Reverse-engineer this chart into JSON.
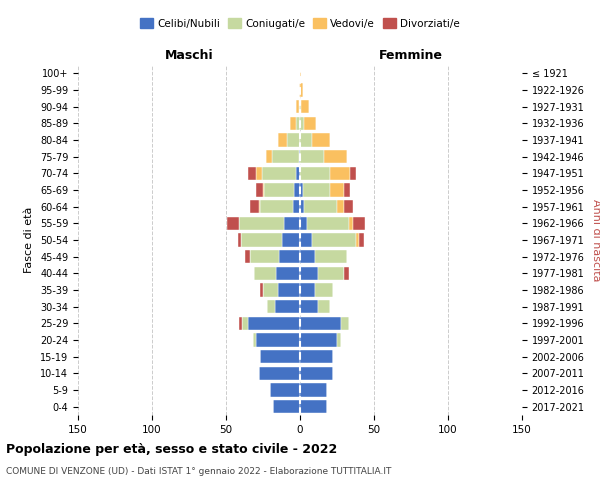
{
  "age_groups": [
    "100+",
    "95-99",
    "90-94",
    "85-89",
    "80-84",
    "75-79",
    "70-74",
    "65-69",
    "60-64",
    "55-59",
    "50-54",
    "45-49",
    "40-44",
    "35-39",
    "30-34",
    "25-29",
    "20-24",
    "15-19",
    "10-14",
    "5-9",
    "0-4"
  ],
  "birth_years": [
    "≤ 1921",
    "1922-1926",
    "1927-1931",
    "1932-1936",
    "1937-1941",
    "1942-1946",
    "1947-1951",
    "1952-1956",
    "1957-1961",
    "1962-1966",
    "1967-1971",
    "1972-1976",
    "1977-1981",
    "1982-1986",
    "1987-1991",
    "1992-1996",
    "1997-2001",
    "2002-2006",
    "2007-2011",
    "2012-2016",
    "2017-2021"
  ],
  "males": {
    "celibi": [
      0,
      0,
      0,
      0,
      0,
      1,
      3,
      4,
      5,
      11,
      12,
      14,
      16,
      15,
      17,
      35,
      30,
      27,
      28,
      20,
      18
    ],
    "coniugati": [
      0,
      0,
      1,
      3,
      9,
      18,
      23,
      20,
      22,
      30,
      28,
      20,
      15,
      10,
      5,
      4,
      2,
      0,
      0,
      0,
      0
    ],
    "vedovi": [
      0,
      1,
      2,
      4,
      6,
      4,
      4,
      1,
      1,
      0,
      0,
      0,
      0,
      0,
      0,
      0,
      0,
      0,
      0,
      0,
      0
    ],
    "divorziati": [
      0,
      0,
      0,
      0,
      0,
      0,
      5,
      5,
      6,
      8,
      2,
      3,
      0,
      2,
      0,
      2,
      0,
      0,
      0,
      0,
      0
    ]
  },
  "females": {
    "nubili": [
      0,
      0,
      0,
      0,
      0,
      0,
      0,
      2,
      3,
      5,
      8,
      10,
      12,
      10,
      12,
      28,
      25,
      22,
      22,
      18,
      18
    ],
    "coniugate": [
      0,
      0,
      1,
      3,
      8,
      16,
      20,
      18,
      22,
      28,
      30,
      22,
      18,
      12,
      8,
      5,
      3,
      0,
      0,
      0,
      0
    ],
    "vedove": [
      1,
      2,
      5,
      8,
      12,
      16,
      14,
      10,
      5,
      3,
      2,
      0,
      0,
      0,
      0,
      0,
      0,
      0,
      0,
      0,
      0
    ],
    "divorziate": [
      0,
      0,
      0,
      0,
      0,
      0,
      4,
      4,
      6,
      8,
      3,
      0,
      3,
      0,
      0,
      0,
      0,
      0,
      0,
      0,
      0
    ]
  },
  "colors": {
    "celibi": "#4472C4",
    "coniugati": "#C6D9A0",
    "vedovi": "#FAC060",
    "divorziati": "#C0504D"
  },
  "title": "Popolazione per età, sesso e stato civile - 2022",
  "subtitle": "COMUNE DI VENZONE (UD) - Dati ISTAT 1° gennaio 2022 - Elaborazione TUTTITALIA.IT",
  "xlabel_left": "Maschi",
  "xlabel_right": "Femmine",
  "ylabel_left": "Fasce di età",
  "ylabel_right": "Anni di nascita",
  "xlim": 150,
  "legend_labels": [
    "Celibi/Nubili",
    "Coniugati/e",
    "Vedovi/e",
    "Divorziati/e"
  ]
}
